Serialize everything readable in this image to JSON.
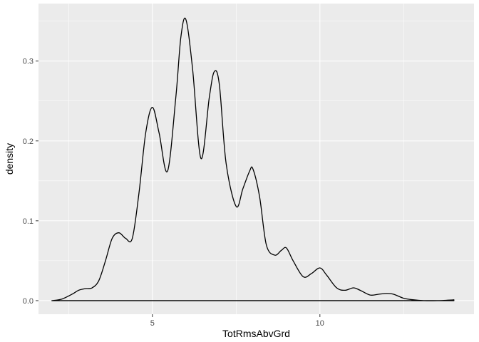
{
  "chart_data": {
    "type": "area",
    "title": "",
    "xlabel": "TotRmsAbvGrd",
    "ylabel": "density",
    "xlim": [
      1.6,
      14.6
    ],
    "ylim": [
      -0.017,
      0.372
    ],
    "x_ticks": [
      5,
      10
    ],
    "x_tick_labels": [
      "5",
      "10"
    ],
    "y_ticks": [
      0.0,
      0.1,
      0.2,
      0.3
    ],
    "y_tick_labels": [
      "0.0",
      "0.1",
      "0.2",
      "0.3"
    ],
    "grid": true,
    "fill": "none",
    "line_color": "#000000",
    "panel_background": "#ebebeb",
    "grid_color": "#ffffff",
    "series": [
      {
        "x": [
          2.0,
          2.3,
          2.6,
          2.8,
          3.0,
          3.2,
          3.4,
          3.6,
          3.8,
          4.0,
          4.2,
          4.4,
          4.6,
          4.8,
          5.0,
          5.2,
          5.45,
          5.7,
          5.85,
          6.0,
          6.2,
          6.45,
          6.7,
          6.85,
          7.0,
          7.2,
          7.5,
          7.7,
          7.9,
          8.0,
          8.2,
          8.4,
          8.65,
          8.85,
          9.0,
          9.2,
          9.5,
          9.75,
          10.0,
          10.2,
          10.5,
          10.75,
          11.0,
          11.2,
          11.5,
          11.75,
          12.0,
          12.2,
          12.5,
          12.8,
          13.1,
          13.5,
          14.0
        ],
        "y": [
          0.0,
          0.002,
          0.008,
          0.013,
          0.015,
          0.016,
          0.025,
          0.05,
          0.078,
          0.085,
          0.078,
          0.078,
          0.135,
          0.21,
          0.242,
          0.21,
          0.162,
          0.255,
          0.33,
          0.352,
          0.29,
          0.178,
          0.255,
          0.287,
          0.27,
          0.172,
          0.118,
          0.14,
          0.162,
          0.165,
          0.13,
          0.07,
          0.057,
          0.063,
          0.066,
          0.05,
          0.03,
          0.034,
          0.041,
          0.032,
          0.016,
          0.013,
          0.016,
          0.013,
          0.007,
          0.008,
          0.009,
          0.008,
          0.003,
          0.001,
          0.0,
          0.0,
          0.001
        ]
      }
    ]
  }
}
